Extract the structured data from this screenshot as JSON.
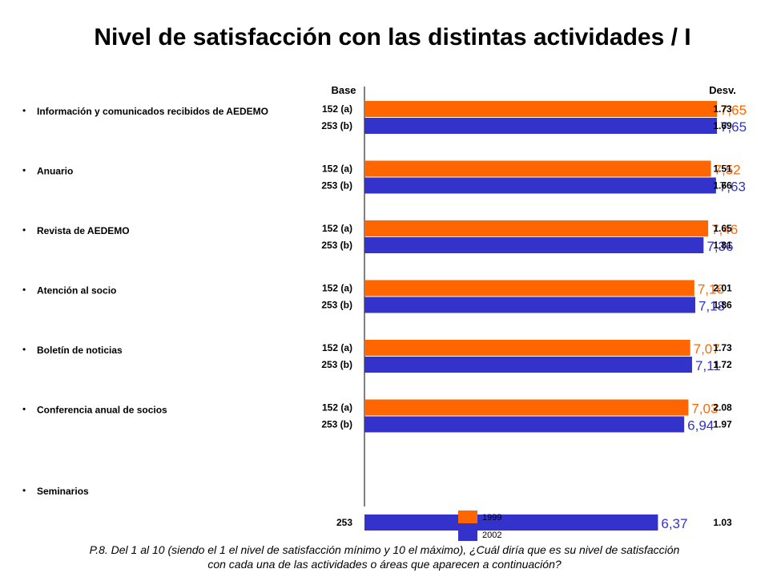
{
  "title": "Nivel de satisfacción con las distintas actividades / I",
  "header_base": "Base",
  "header_desv": "Desv.",
  "caption_line1": "P.8. Del 1 al 10 (siendo el 1 el nivel de satisfacción mínimo y 10 el máximo), ¿Cuál diría que es su nivel de satisfacción",
  "caption_line2": "con cada una de las actividades o áreas que aparecen a continuación?",
  "colors": {
    "1999": "#FF6600",
    "2002": "#3333CC"
  },
  "chart_data": {
    "type": "bar",
    "orientation": "horizontal",
    "categories": [
      "Información y comunicados recibidos de AEDEMO",
      "Anuario",
      "Revista de AEDEMO",
      "Atención al socio",
      "Boletín de noticias",
      "Conferencia anual de socios",
      "Seminarios"
    ],
    "series": [
      {
        "name": "1999",
        "color": "#FF6600",
        "values": [
          7.65,
          7.52,
          7.46,
          7.16,
          7.07,
          7.03,
          null
        ],
        "labels": [
          "7,65",
          "7,52",
          "7,46",
          "7,16",
          "7,07",
          "7,03",
          ""
        ],
        "base": [
          "152 (a)",
          "152 (a)",
          "152 (a)",
          "152 (a)",
          "152 (a)",
          "152 (a)",
          ""
        ],
        "desv": [
          "1.73",
          "1.51",
          "1.65",
          "2.01",
          "1.73",
          "2.08",
          ""
        ]
      },
      {
        "name": "2002",
        "color": "#3333CC",
        "values": [
          7.65,
          7.63,
          7.36,
          7.18,
          7.11,
          6.94,
          6.37
        ],
        "labels": [
          "7,65",
          "7,63",
          "7,36",
          "7,18",
          "7,11",
          "6,94",
          "6,37"
        ],
        "base": [
          "253 (b)",
          "253 (b)",
          "253 (b)",
          "253 (b)",
          "253 (b)",
          "253 (b)",
          "253"
        ],
        "desv": [
          "1.69",
          "1.66",
          "1.81",
          "1.86",
          "1.72",
          "1.97",
          "1.03"
        ]
      }
    ],
    "xlim": [
      0,
      10
    ],
    "grid": false,
    "legend_position": "bottom-center"
  }
}
